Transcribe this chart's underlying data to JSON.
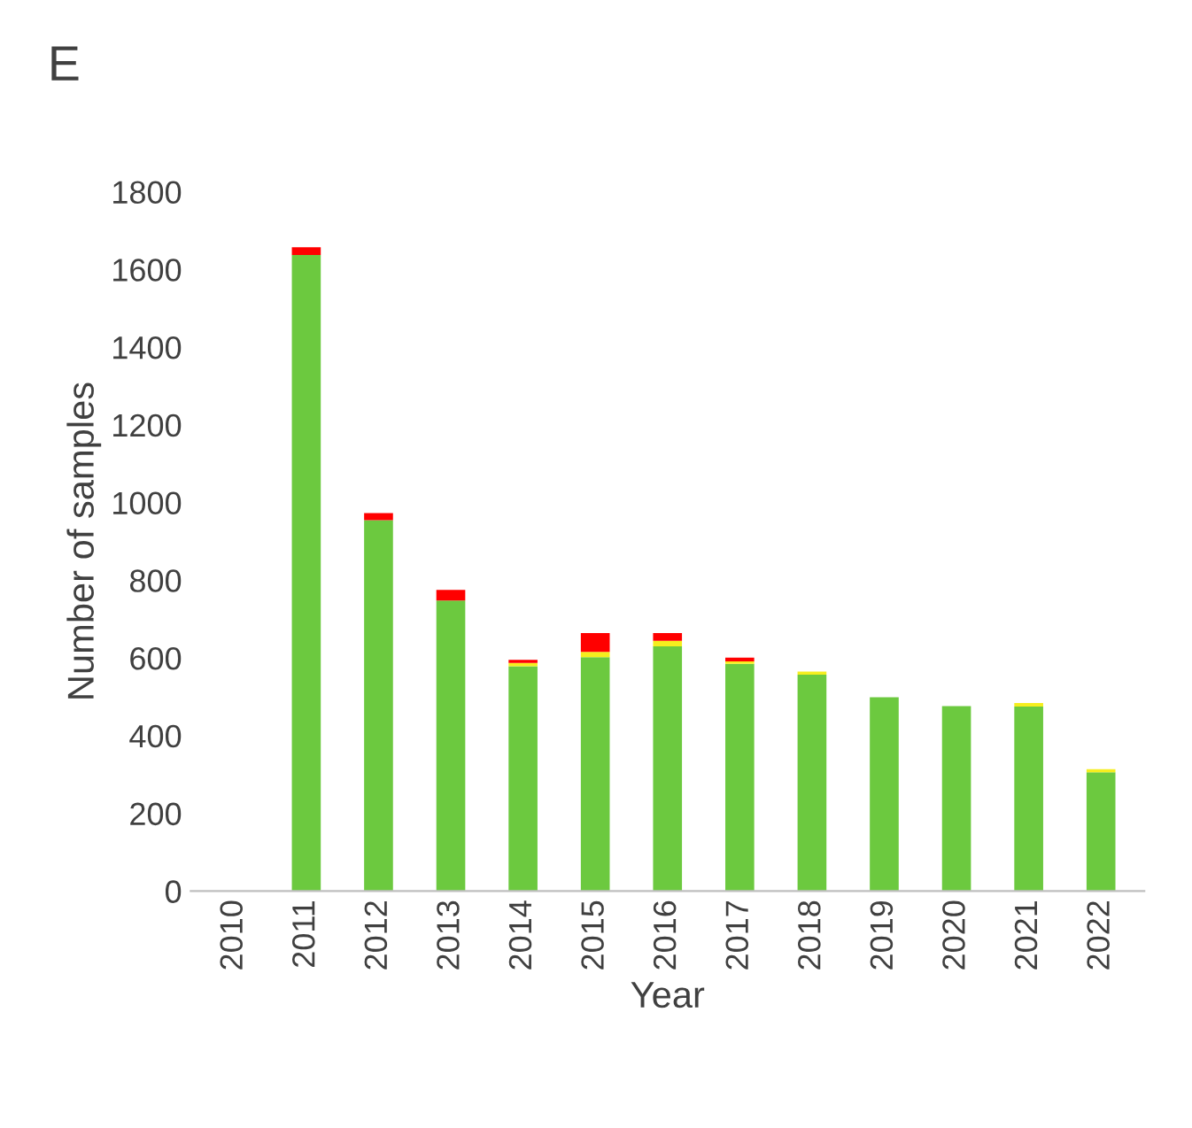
{
  "chart_data": {
    "type": "bar",
    "stacked": true,
    "xlabel": "Year",
    "ylabel": "Number of samples",
    "annotations": [
      "E"
    ],
    "categories": [
      "2010",
      "2011",
      "2012",
      "2013",
      "2014",
      "2015",
      "2016",
      "2017",
      "2018",
      "2019",
      "2020",
      "2021",
      "2022"
    ],
    "series": [
      {
        "color": "#6cc93f",
        "values": [
          0,
          1637,
          955,
          748,
          579,
          602,
          630,
          585,
          557,
          499,
          476,
          475,
          306
        ]
      },
      {
        "color": "#f5ee1e",
        "values": [
          0,
          0,
          0,
          0,
          8,
          14,
          14,
          6,
          8,
          0,
          0,
          9,
          8
        ]
      },
      {
        "color": "#ff0000",
        "values": [
          0,
          20,
          18,
          27,
          8,
          48,
          20,
          10,
          0,
          0,
          0,
          0,
          0
        ]
      }
    ],
    "ylim": [
      0,
      1800
    ],
    "yticks": [
      0,
      200,
      400,
      600,
      800,
      1000,
      1200,
      1400,
      1600,
      1800
    ],
    "grid": false,
    "legend": false
  }
}
